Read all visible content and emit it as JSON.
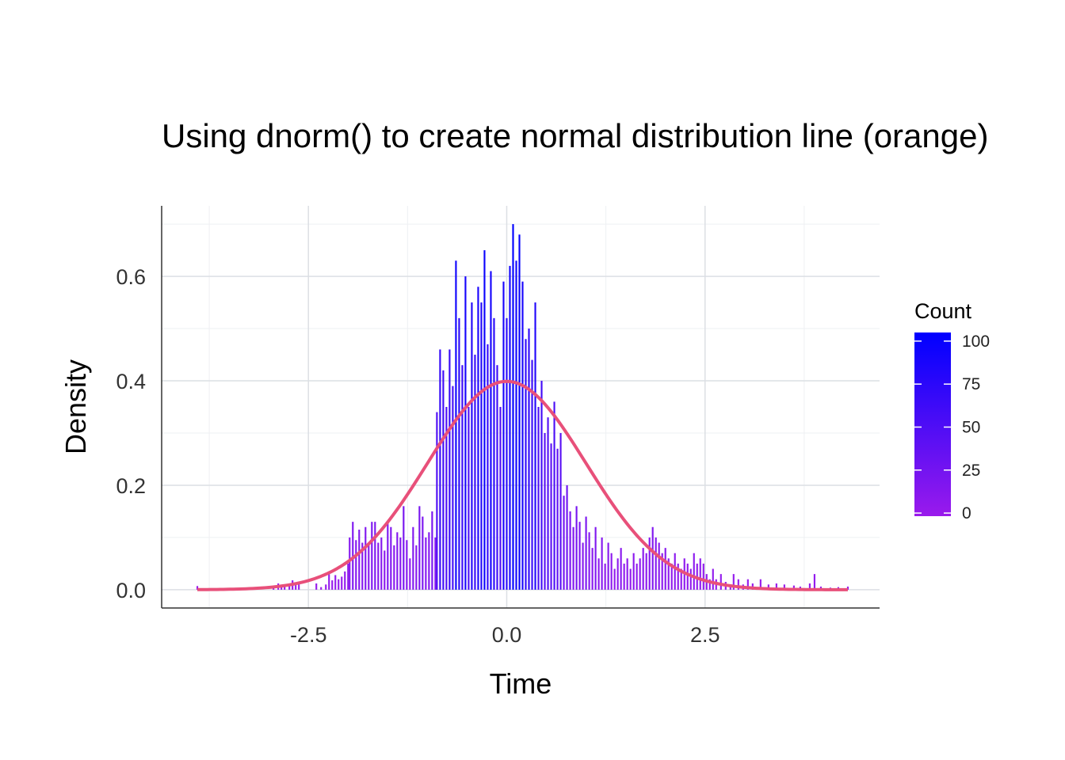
{
  "chart_data": {
    "type": "bar",
    "title": "Using dnorm() to create normal distribution line (orange)",
    "xlabel": "Time",
    "ylabel": "Density",
    "xlim": [
      -4.35,
      4.7
    ],
    "ylim": [
      -0.035,
      0.735
    ],
    "x_ticks": [
      -2.5,
      0.0,
      2.5
    ],
    "x_tick_labels": [
      "-2.5",
      "0.0",
      "2.5"
    ],
    "y_ticks": [
      0.0,
      0.2,
      0.4,
      0.6
    ],
    "y_tick_labels": [
      "0.0",
      "0.2",
      "0.4",
      "0.6"
    ],
    "grid": true,
    "legend": {
      "title": "Count",
      "position": "right",
      "breaks": [
        0,
        25,
        50,
        75,
        100
      ],
      "labels": [
        "0",
        "25",
        "50",
        "75",
        "100"
      ],
      "low_color": "#9a1aec",
      "high_color": "#0000ff"
    },
    "histogram": {
      "bin_width": 0.0212,
      "bins": [
        {
          "x": -3.9,
          "density": 0.007
        },
        {
          "x": -3.88,
          "density": 0.0
        },
        {
          "x": -3.5,
          "density": 0.003
        },
        {
          "x": -3.2,
          "density": 0.003
        },
        {
          "x": -2.94,
          "density": 0.008
        },
        {
          "x": -2.88,
          "density": 0.012
        },
        {
          "x": -2.84,
          "density": 0.008
        },
        {
          "x": -2.8,
          "density": 0.006
        },
        {
          "x": -2.74,
          "density": 0.012
        },
        {
          "x": -2.7,
          "density": 0.018
        },
        {
          "x": -2.66,
          "density": 0.01
        },
        {
          "x": -2.62,
          "density": 0.012
        },
        {
          "x": -2.4,
          "density": 0.012
        },
        {
          "x": -2.34,
          "density": 0.005
        },
        {
          "x": -2.28,
          "density": 0.01
        },
        {
          "x": -2.24,
          "density": 0.03
        },
        {
          "x": -2.2,
          "density": 0.018
        },
        {
          "x": -2.16,
          "density": 0.028
        },
        {
          "x": -2.12,
          "density": 0.02
        },
        {
          "x": -2.08,
          "density": 0.025
        },
        {
          "x": -2.04,
          "density": 0.035
        },
        {
          "x": -2.0,
          "density": 0.05
        },
        {
          "x": -1.98,
          "density": 0.1
        },
        {
          "x": -1.94,
          "density": 0.13
        },
        {
          "x": -1.9,
          "density": 0.095
        },
        {
          "x": -1.86,
          "density": 0.115
        },
        {
          "x": -1.82,
          "density": 0.09
        },
        {
          "x": -1.78,
          "density": 0.12
        },
        {
          "x": -1.74,
          "density": 0.088
        },
        {
          "x": -1.7,
          "density": 0.13
        },
        {
          "x": -1.66,
          "density": 0.13
        },
        {
          "x": -1.62,
          "density": 0.09
        },
        {
          "x": -1.58,
          "density": 0.1
        },
        {
          "x": -1.54,
          "density": 0.075
        },
        {
          "x": -1.5,
          "density": 0.13
        },
        {
          "x": -1.46,
          "density": 0.12
        },
        {
          "x": -1.42,
          "density": 0.085
        },
        {
          "x": -1.38,
          "density": 0.11
        },
        {
          "x": -1.34,
          "density": 0.1
        },
        {
          "x": -1.3,
          "density": 0.16
        },
        {
          "x": -1.26,
          "density": 0.095
        },
        {
          "x": -1.22,
          "density": 0.06
        },
        {
          "x": -1.18,
          "density": 0.12
        },
        {
          "x": -1.14,
          "density": 0.085
        },
        {
          "x": -1.1,
          "density": 0.16
        },
        {
          "x": -1.06,
          "density": 0.14
        },
        {
          "x": -1.02,
          "density": 0.1
        },
        {
          "x": -0.98,
          "density": 0.11
        },
        {
          "x": -0.94,
          "density": 0.15
        },
        {
          "x": -0.9,
          "density": 0.1
        },
        {
          "x": -0.88,
          "density": 0.34
        },
        {
          "x": -0.84,
          "density": 0.46
        },
        {
          "x": -0.8,
          "density": 0.42
        },
        {
          "x": -0.76,
          "density": 0.35
        },
        {
          "x": -0.72,
          "density": 0.46
        },
        {
          "x": -0.68,
          "density": 0.39
        },
        {
          "x": -0.64,
          "density": 0.63
        },
        {
          "x": -0.6,
          "density": 0.52
        },
        {
          "x": -0.56,
          "density": 0.43
        },
        {
          "x": -0.52,
          "density": 0.6
        },
        {
          "x": -0.48,
          "density": 0.35
        },
        {
          "x": -0.44,
          "density": 0.55
        },
        {
          "x": -0.4,
          "density": 0.45
        },
        {
          "x": -0.36,
          "density": 0.58
        },
        {
          "x": -0.32,
          "density": 0.55
        },
        {
          "x": -0.28,
          "density": 0.65
        },
        {
          "x": -0.24,
          "density": 0.47
        },
        {
          "x": -0.2,
          "density": 0.61
        },
        {
          "x": -0.16,
          "density": 0.52
        },
        {
          "x": -0.12,
          "density": 0.43
        },
        {
          "x": -0.08,
          "density": 0.35
        },
        {
          "x": -0.04,
          "density": 0.59
        },
        {
          "x": 0.0,
          "density": 0.52
        },
        {
          "x": 0.04,
          "density": 0.62
        },
        {
          "x": 0.08,
          "density": 0.7
        },
        {
          "x": 0.12,
          "density": 0.63
        },
        {
          "x": 0.16,
          "density": 0.68
        },
        {
          "x": 0.2,
          "density": 0.59
        },
        {
          "x": 0.24,
          "density": 0.48
        },
        {
          "x": 0.28,
          "density": 0.5
        },
        {
          "x": 0.32,
          "density": 0.44
        },
        {
          "x": 0.36,
          "density": 0.55
        },
        {
          "x": 0.4,
          "density": 0.35
        },
        {
          "x": 0.44,
          "density": 0.4
        },
        {
          "x": 0.48,
          "density": 0.3
        },
        {
          "x": 0.52,
          "density": 0.33
        },
        {
          "x": 0.56,
          "density": 0.28
        },
        {
          "x": 0.6,
          "density": 0.36
        },
        {
          "x": 0.64,
          "density": 0.27
        },
        {
          "x": 0.68,
          "density": 0.3
        },
        {
          "x": 0.72,
          "density": 0.18
        },
        {
          "x": 0.76,
          "density": 0.2
        },
        {
          "x": 0.8,
          "density": 0.15
        },
        {
          "x": 0.84,
          "density": 0.12
        },
        {
          "x": 0.88,
          "density": 0.16
        },
        {
          "x": 0.92,
          "density": 0.13
        },
        {
          "x": 0.96,
          "density": 0.09
        },
        {
          "x": 1.0,
          "density": 0.14
        },
        {
          "x": 1.04,
          "density": 0.11
        },
        {
          "x": 1.08,
          "density": 0.08
        },
        {
          "x": 1.12,
          "density": 0.12
        },
        {
          "x": 1.16,
          "density": 0.06
        },
        {
          "x": 1.2,
          "density": 0.1
        },
        {
          "x": 1.24,
          "density": 0.05
        },
        {
          "x": 1.28,
          "density": 0.09
        },
        {
          "x": 1.32,
          "density": 0.07
        },
        {
          "x": 1.36,
          "density": 0.04
        },
        {
          "x": 1.4,
          "density": 0.06
        },
        {
          "x": 1.44,
          "density": 0.08
        },
        {
          "x": 1.48,
          "density": 0.05
        },
        {
          "x": 1.52,
          "density": 0.06
        },
        {
          "x": 1.56,
          "density": 0.04
        },
        {
          "x": 1.6,
          "density": 0.07
        },
        {
          "x": 1.64,
          "density": 0.05
        },
        {
          "x": 1.68,
          "density": 0.06
        },
        {
          "x": 1.72,
          "density": 0.08
        },
        {
          "x": 1.76,
          "density": 0.07
        },
        {
          "x": 1.8,
          "density": 0.1
        },
        {
          "x": 1.84,
          "density": 0.12
        },
        {
          "x": 1.88,
          "density": 0.1
        },
        {
          "x": 1.92,
          "density": 0.09
        },
        {
          "x": 1.96,
          "density": 0.07
        },
        {
          "x": 2.0,
          "density": 0.08
        },
        {
          "x": 2.04,
          "density": 0.06
        },
        {
          "x": 2.08,
          "density": 0.05
        },
        {
          "x": 2.12,
          "density": 0.07
        },
        {
          "x": 2.16,
          "density": 0.05
        },
        {
          "x": 2.2,
          "density": 0.04
        },
        {
          "x": 2.24,
          "density": 0.06
        },
        {
          "x": 2.28,
          "density": 0.05
        },
        {
          "x": 2.32,
          "density": 0.04
        },
        {
          "x": 2.36,
          "density": 0.07
        },
        {
          "x": 2.4,
          "density": 0.05
        },
        {
          "x": 2.44,
          "density": 0.06
        },
        {
          "x": 2.48,
          "density": 0.05
        },
        {
          "x": 2.52,
          "density": 0.03
        },
        {
          "x": 2.56,
          "density": 0.02
        },
        {
          "x": 2.6,
          "density": 0.04
        },
        {
          "x": 2.64,
          "density": 0.02
        },
        {
          "x": 2.7,
          "density": 0.03
        },
        {
          "x": 2.76,
          "density": 0.015
        },
        {
          "x": 2.82,
          "density": 0.01
        },
        {
          "x": 2.86,
          "density": 0.03
        },
        {
          "x": 2.92,
          "density": 0.02
        },
        {
          "x": 2.98,
          "density": 0.01
        },
        {
          "x": 3.04,
          "density": 0.02
        },
        {
          "x": 3.1,
          "density": 0.012
        },
        {
          "x": 3.2,
          "density": 0.02
        },
        {
          "x": 3.3,
          "density": 0.01
        },
        {
          "x": 3.4,
          "density": 0.012
        },
        {
          "x": 3.5,
          "density": 0.01
        },
        {
          "x": 3.62,
          "density": 0.008
        },
        {
          "x": 3.7,
          "density": 0.006
        },
        {
          "x": 3.82,
          "density": 0.012
        },
        {
          "x": 3.88,
          "density": 0.03
        },
        {
          "x": 3.96,
          "density": 0.006
        },
        {
          "x": 4.08,
          "density": 0.004
        },
        {
          "x": 4.18,
          "density": 0.005
        },
        {
          "x": 4.3,
          "density": 0.006
        }
      ]
    },
    "normal_curve": {
      "mean": 0,
      "sd": 1,
      "x_range": [
        -3.9,
        4.3
      ],
      "color": "#e8507a"
    }
  }
}
